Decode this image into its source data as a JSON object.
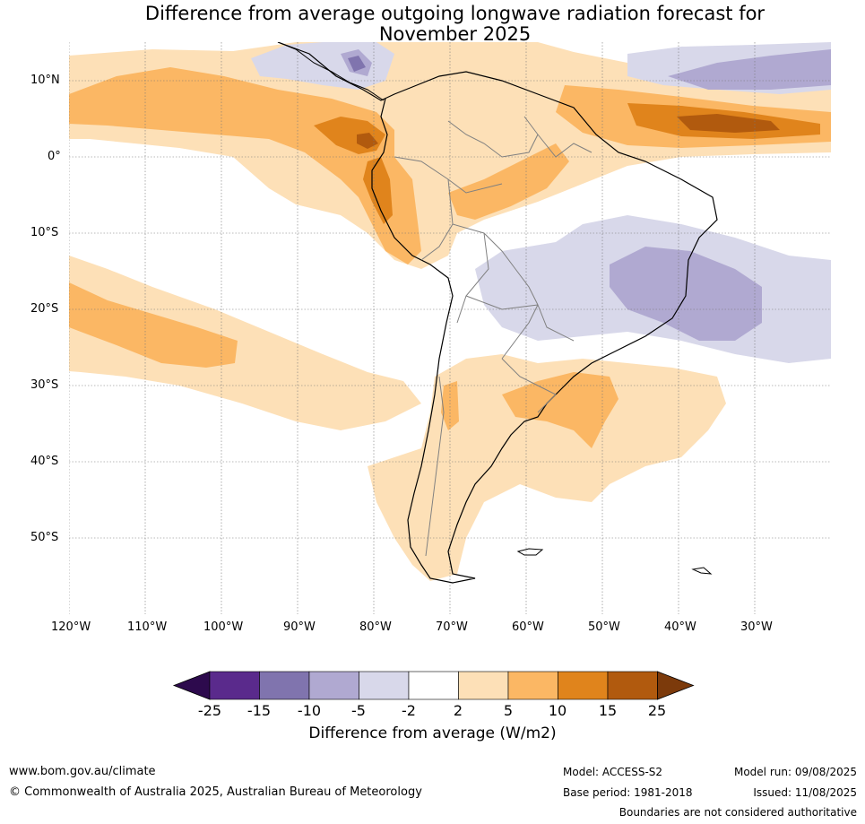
{
  "title_line1": "Difference from average outgoing longwave radiation forecast for",
  "title_line2": "November 2025",
  "lat_labels": [
    "10°N",
    "0°",
    "10°S",
    "20°S",
    "30°S",
    "40°S",
    "50°S"
  ],
  "lon_labels": [
    "120°W",
    "110°W",
    "100°W",
    "90°W",
    "80°W",
    "70°W",
    "60°W",
    "50°W",
    "40°W",
    "30°W"
  ],
  "colorbar": {
    "ticks": [
      "-25",
      "-15",
      "-10",
      "-5",
      "-2",
      "2",
      "5",
      "10",
      "15",
      "25"
    ],
    "colors": [
      "#2d0a4d",
      "#5a2a8c",
      "#8074ae",
      "#b0a9d1",
      "#d8d8ea",
      "#ffffff",
      "#fde0b7",
      "#fbb764",
      "#e0841c",
      "#b15a0e",
      "#7c3a0b"
    ],
    "label": "Difference from average (W/m2)"
  },
  "footer": {
    "website": "www.bom.gov.au/climate",
    "copyright": "© Commonwealth of Australia 2025, Australian Bureau of Meteorology",
    "model": "Model: ACCESS-S2",
    "base_period": "Base period: 1981-2018",
    "model_run": "Model run: 09/08/2025",
    "issued": "Issued: 11/08/2025",
    "disclaimer": "Boundaries are not considered authoritative"
  }
}
